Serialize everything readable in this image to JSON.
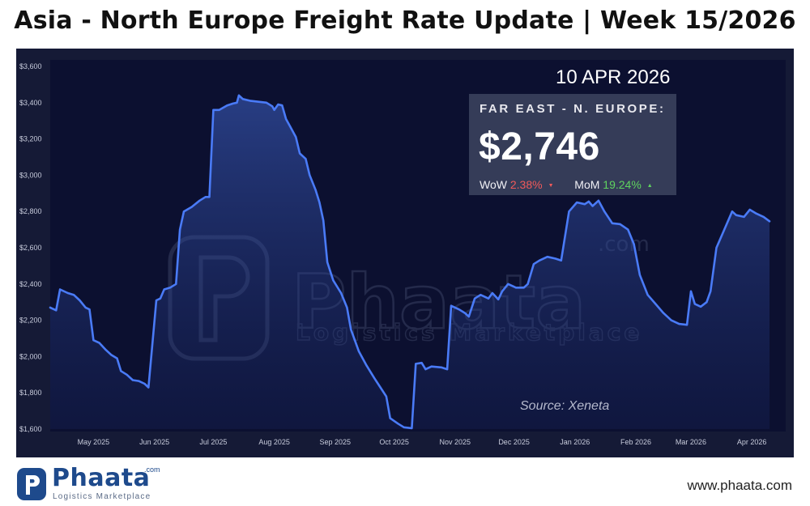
{
  "title": "Asia - North Europe Freight Rate Update | Week 15/2026",
  "date_label": "10 APR 2026",
  "card": {
    "route": "FAR EAST - N. EUROPE:",
    "price": "$2,746",
    "wow_label": "WoW",
    "wow_value": "2.38%",
    "wow_direction": "down",
    "mom_label": "MoM",
    "mom_value": "19.24%",
    "mom_direction": "up"
  },
  "source": "Source: Xeneta",
  "watermark": {
    "name": "Phaata",
    "tld": ".com",
    "tagline": "Logistics Marketplace"
  },
  "footer": {
    "logo_name": "Phaata",
    "logo_tld": ".com",
    "logo_tagline": "Logistics Marketplace",
    "website": "www.phaata.com"
  },
  "colors": {
    "background": "#151a36",
    "line": "#4a7bf7",
    "wow": "#f05a5a",
    "mom": "#5fd35f",
    "brand": "#1e4a8c"
  },
  "icons": {
    "wow_arrow": "triangle-down-icon",
    "mom_arrow": "triangle-up-icon",
    "logo": "phaata-logo-icon"
  },
  "chart_data": {
    "type": "area",
    "title": "",
    "xlabel": "",
    "ylabel": "",
    "ylim": [
      1600,
      3600
    ],
    "yticks": [
      1600,
      1800,
      2000,
      2200,
      2400,
      2600,
      2800,
      3000,
      3200,
      3400,
      3600
    ],
    "ytick_labels": [
      "$1,600",
      "$1,800",
      "$2,000",
      "$2,200",
      "$2,400",
      "$2,600",
      "$2,800",
      "$3,000",
      "$3,200",
      "$3,400",
      "$3,600"
    ],
    "xlim": [
      "2025-04-09",
      "2026-04-10"
    ],
    "xticks": [
      "2025-05-01",
      "2025-06-01",
      "2025-07-01",
      "2025-08-01",
      "2025-09-01",
      "2025-10-01",
      "2025-11-01",
      "2025-12-01",
      "2026-01-01",
      "2026-02-01",
      "2026-03-01",
      "2026-04-01"
    ],
    "xtick_labels": [
      "May 2025",
      "Jun 2025",
      "Jul 2025",
      "Aug 2025",
      "Sep 2025",
      "Oct 2025",
      "Nov 2025",
      "Dec 2025",
      "Jan 2026",
      "Feb 2026",
      "Mar 2026",
      "Apr 2026"
    ],
    "grid": false,
    "legend": "none",
    "series": [
      {
        "points": [
          [
            "2025-04-09",
            2270
          ],
          [
            "2025-04-12",
            2255
          ],
          [
            "2025-04-14",
            2370
          ],
          [
            "2025-04-18",
            2350
          ],
          [
            "2025-04-21",
            2340
          ],
          [
            "2025-04-24",
            2310
          ],
          [
            "2025-04-27",
            2270
          ],
          [
            "2025-04-29",
            2260
          ],
          [
            "2025-05-01",
            2090
          ],
          [
            "2025-05-04",
            2075
          ],
          [
            "2025-05-07",
            2040
          ],
          [
            "2025-05-10",
            2010
          ],
          [
            "2025-05-13",
            1990
          ],
          [
            "2025-05-15",
            1920
          ],
          [
            "2025-05-18",
            1900
          ],
          [
            "2025-05-21",
            1870
          ],
          [
            "2025-05-24",
            1865
          ],
          [
            "2025-05-27",
            1850
          ],
          [
            "2025-05-29",
            1830
          ],
          [
            "2025-06-02",
            2310
          ],
          [
            "2025-06-04",
            2320
          ],
          [
            "2025-06-06",
            2370
          ],
          [
            "2025-06-09",
            2380
          ],
          [
            "2025-06-12",
            2400
          ],
          [
            "2025-06-14",
            2700
          ],
          [
            "2025-06-16",
            2800
          ],
          [
            "2025-06-20",
            2825
          ],
          [
            "2025-06-24",
            2860
          ],
          [
            "2025-06-27",
            2880
          ],
          [
            "2025-06-29",
            2880
          ],
          [
            "2025-07-01",
            3360
          ],
          [
            "2025-07-04",
            3360
          ],
          [
            "2025-07-08",
            3385
          ],
          [
            "2025-07-11",
            3395
          ],
          [
            "2025-07-13",
            3400
          ],
          [
            "2025-07-14",
            3440
          ],
          [
            "2025-07-16",
            3420
          ],
          [
            "2025-07-20",
            3410
          ],
          [
            "2025-07-24",
            3405
          ],
          [
            "2025-07-28",
            3400
          ],
          [
            "2025-07-31",
            3380
          ],
          [
            "2025-08-01",
            3360
          ],
          [
            "2025-08-03",
            3390
          ],
          [
            "2025-08-05",
            3385
          ],
          [
            "2025-08-07",
            3310
          ],
          [
            "2025-08-09",
            3270
          ],
          [
            "2025-08-12",
            3210
          ],
          [
            "2025-08-14",
            3120
          ],
          [
            "2025-08-17",
            3090
          ],
          [
            "2025-08-19",
            3000
          ],
          [
            "2025-08-22",
            2920
          ],
          [
            "2025-08-24",
            2850
          ],
          [
            "2025-08-26",
            2750
          ],
          [
            "2025-08-28",
            2520
          ],
          [
            "2025-08-31",
            2420
          ],
          [
            "2025-09-04",
            2350
          ],
          [
            "2025-09-07",
            2270
          ],
          [
            "2025-09-09",
            2150
          ],
          [
            "2025-09-13",
            2030
          ],
          [
            "2025-09-17",
            1950
          ],
          [
            "2025-09-21",
            1880
          ],
          [
            "2025-09-24",
            1830
          ],
          [
            "2025-09-27",
            1780
          ],
          [
            "2025-09-29",
            1660
          ],
          [
            "2025-10-03",
            1630
          ],
          [
            "2025-10-06",
            1610
          ],
          [
            "2025-10-10",
            1605
          ],
          [
            "2025-10-12",
            1960
          ],
          [
            "2025-10-15",
            1965
          ],
          [
            "2025-10-17",
            1930
          ],
          [
            "2025-10-20",
            1945
          ],
          [
            "2025-10-25",
            1940
          ],
          [
            "2025-10-28",
            1930
          ],
          [
            "2025-10-30",
            2280
          ],
          [
            "2025-11-03",
            2260
          ],
          [
            "2025-11-06",
            2240
          ],
          [
            "2025-11-08",
            2220
          ],
          [
            "2025-11-11",
            2320
          ],
          [
            "2025-11-14",
            2340
          ],
          [
            "2025-11-18",
            2320
          ],
          [
            "2025-11-20",
            2350
          ],
          [
            "2025-11-23",
            2315
          ],
          [
            "2025-11-25",
            2360
          ],
          [
            "2025-11-28",
            2400
          ],
          [
            "2025-12-02",
            2380
          ],
          [
            "2025-12-06",
            2380
          ],
          [
            "2025-12-08",
            2400
          ],
          [
            "2025-12-11",
            2510
          ],
          [
            "2025-12-14",
            2530
          ],
          [
            "2025-12-18",
            2550
          ],
          [
            "2025-12-22",
            2540
          ],
          [
            "2025-12-25",
            2530
          ],
          [
            "2025-12-29",
            2800
          ],
          [
            "2026-01-02",
            2850
          ],
          [
            "2026-01-06",
            2840
          ],
          [
            "2026-01-08",
            2855
          ],
          [
            "2026-01-10",
            2830
          ],
          [
            "2026-01-13",
            2860
          ],
          [
            "2026-01-16",
            2800
          ],
          [
            "2026-01-20",
            2735
          ],
          [
            "2026-01-24",
            2730
          ],
          [
            "2026-01-28",
            2700
          ],
          [
            "2026-01-31",
            2620
          ],
          [
            "2026-02-03",
            2450
          ],
          [
            "2026-02-07",
            2340
          ],
          [
            "2026-02-11",
            2290
          ],
          [
            "2026-02-15",
            2240
          ],
          [
            "2026-02-19",
            2200
          ],
          [
            "2026-02-23",
            2180
          ],
          [
            "2026-02-27",
            2175
          ],
          [
            "2026-03-01",
            2360
          ],
          [
            "2026-03-03",
            2290
          ],
          [
            "2026-03-06",
            2275
          ],
          [
            "2026-03-09",
            2300
          ],
          [
            "2026-03-11",
            2360
          ],
          [
            "2026-03-14",
            2600
          ],
          [
            "2026-03-18",
            2700
          ],
          [
            "2026-03-22",
            2800
          ],
          [
            "2026-03-24",
            2780
          ],
          [
            "2026-03-28",
            2770
          ],
          [
            "2026-03-31",
            2810
          ],
          [
            "2026-04-03",
            2790
          ],
          [
            "2026-04-07",
            2770
          ],
          [
            "2026-04-10",
            2746
          ]
        ]
      }
    ]
  }
}
